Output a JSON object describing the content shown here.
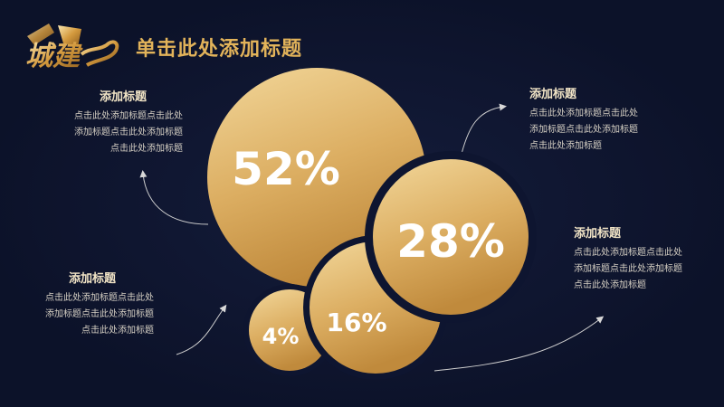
{
  "header": {
    "logo_text": "城建",
    "title": "单击此处添加标题"
  },
  "colors": {
    "background": "#0e1530",
    "gold_light": "#f2d79a",
    "gold_dark": "#c08a3c",
    "title_gold": "#e2b35a"
  },
  "circles": [
    {
      "value": "52%"
    },
    {
      "value": "28%"
    },
    {
      "value": "16%"
    },
    {
      "value": "4%"
    }
  ],
  "blocks": {
    "top_left": {
      "title": "添加标题",
      "lines": [
        "点击此处添加标题点击此处",
        "添加标题点击此处添加标题",
        "点击此处添加标题"
      ]
    },
    "top_right": {
      "title": "添加标题",
      "lines": [
        "点击此处添加标题点击此处",
        "添加标题点击此处添加标题",
        "点击此处添加标题"
      ]
    },
    "bottom_left": {
      "title": "添加标题",
      "lines": [
        "点击此处添加标题点击此处",
        "添加标题点击此处添加标题",
        "点击此处添加标题"
      ]
    },
    "bottom_right": {
      "title": "添加标题",
      "lines": [
        "点击此处添加标题点击此处",
        "添加标题点击此处添加标题",
        "点击此处添加标题"
      ]
    }
  }
}
